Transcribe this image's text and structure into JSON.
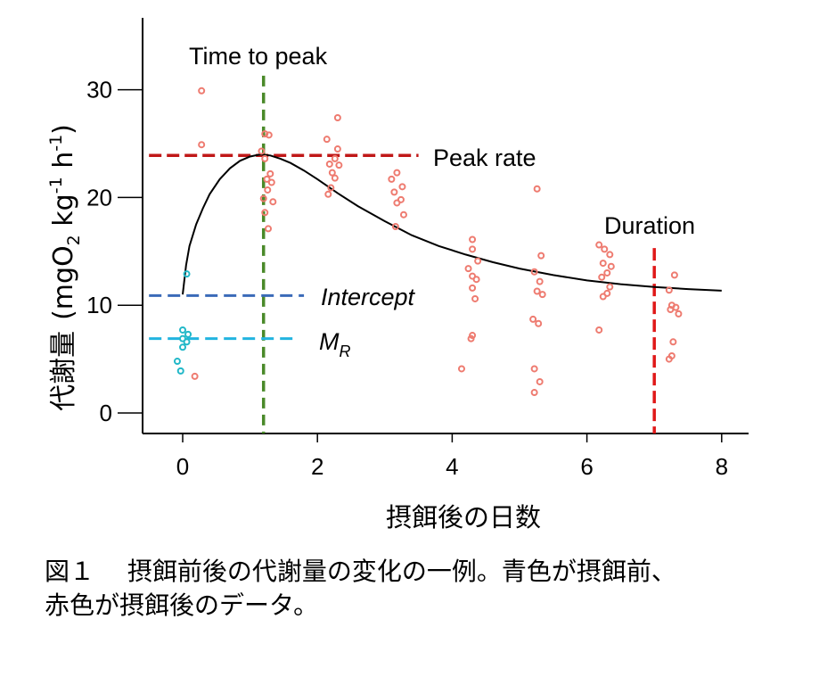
{
  "chart_data": {
    "type": "scatter",
    "xlabel": "摂餌後の日数",
    "ylabel": {
      "main": "代謝量",
      "unit_open": "(mgO",
      "unit_sub": "2",
      "unit_mid": " kg",
      "unit_sup1": "-1",
      "unit_mid2": " h",
      "unit_sup2": "-1",
      "unit_close": ")"
    },
    "xlim": [
      -0.6,
      8.4
    ],
    "ylim": [
      -1.8,
      36.5
    ],
    "x_ticks": [
      0,
      2,
      4,
      6,
      8
    ],
    "y_ticks": [
      0,
      10,
      20,
      30
    ],
    "grid": false,
    "colors": {
      "before": "#22b8c8",
      "after": "#ee7b70",
      "curve": "#000000",
      "peak_rate_line": "#c01818",
      "time_to_peak_line": "#4a8a2a",
      "intercept_line": "#3a6ab8",
      "mr_line": "#22b4e0",
      "duration_line": "#e01818"
    },
    "series": [
      {
        "name": "青色 摂餌前",
        "points": [
          [
            0.06,
            12.9
          ],
          [
            0.0,
            7.7
          ],
          [
            0.08,
            7.3
          ],
          [
            0.0,
            6.9
          ],
          [
            0.06,
            6.6
          ],
          [
            0.0,
            6.1
          ],
          [
            -0.08,
            4.8
          ],
          [
            -0.03,
            3.9
          ]
        ]
      },
      {
        "name": "赤色 摂餌後",
        "points": [
          [
            0.28,
            29.9
          ],
          [
            0.28,
            24.9
          ],
          [
            0.18,
            3.4
          ],
          [
            1.22,
            25.9
          ],
          [
            1.28,
            25.8
          ],
          [
            1.17,
            24.3
          ],
          [
            1.22,
            23.6
          ],
          [
            1.3,
            22.2
          ],
          [
            1.25,
            21.7
          ],
          [
            1.32,
            21.4
          ],
          [
            1.26,
            20.7
          ],
          [
            1.2,
            19.9
          ],
          [
            1.34,
            19.6
          ],
          [
            1.22,
            18.6
          ],
          [
            1.27,
            17.1
          ],
          [
            2.14,
            25.4
          ],
          [
            2.3,
            27.4
          ],
          [
            2.3,
            24.5
          ],
          [
            2.26,
            23.6
          ],
          [
            2.18,
            23.1
          ],
          [
            2.32,
            23.0
          ],
          [
            2.22,
            22.3
          ],
          [
            2.26,
            21.8
          ],
          [
            2.2,
            20.9
          ],
          [
            2.16,
            20.3
          ],
          [
            3.18,
            22.3
          ],
          [
            3.1,
            21.7
          ],
          [
            3.26,
            21.0
          ],
          [
            3.14,
            20.5
          ],
          [
            3.24,
            19.8
          ],
          [
            3.18,
            19.5
          ],
          [
            3.28,
            18.4
          ],
          [
            3.16,
            17.3
          ],
          [
            4.3,
            16.1
          ],
          [
            4.3,
            15.2
          ],
          [
            4.38,
            14.1
          ],
          [
            4.24,
            13.4
          ],
          [
            4.3,
            12.7
          ],
          [
            4.36,
            12.4
          ],
          [
            4.3,
            11.6
          ],
          [
            4.34,
            10.6
          ],
          [
            4.3,
            7.2
          ],
          [
            4.28,
            6.9
          ],
          [
            4.14,
            4.1
          ],
          [
            5.26,
            20.8
          ],
          [
            5.32,
            14.6
          ],
          [
            5.22,
            13.1
          ],
          [
            5.3,
            12.2
          ],
          [
            5.26,
            11.3
          ],
          [
            5.34,
            11.0
          ],
          [
            5.2,
            8.7
          ],
          [
            5.28,
            8.3
          ],
          [
            5.22,
            4.1
          ],
          [
            5.3,
            2.9
          ],
          [
            5.22,
            1.9
          ],
          [
            6.18,
            15.6
          ],
          [
            6.26,
            15.2
          ],
          [
            6.34,
            14.7
          ],
          [
            6.24,
            13.9
          ],
          [
            6.36,
            13.6
          ],
          [
            6.3,
            13.0
          ],
          [
            6.22,
            12.6
          ],
          [
            6.34,
            11.7
          ],
          [
            6.3,
            11.1
          ],
          [
            6.24,
            10.8
          ],
          [
            6.18,
            7.7
          ],
          [
            7.3,
            12.8
          ],
          [
            7.22,
            11.4
          ],
          [
            7.26,
            10.0
          ],
          [
            7.32,
            9.8
          ],
          [
            7.24,
            9.6
          ],
          [
            7.36,
            9.2
          ],
          [
            7.28,
            6.6
          ],
          [
            7.26,
            5.3
          ],
          [
            7.22,
            5.0
          ]
        ]
      }
    ],
    "curve": [
      [
        0.0,
        11.0
      ],
      [
        0.05,
        13.7
      ],
      [
        0.1,
        15.5
      ],
      [
        0.2,
        17.5
      ],
      [
        0.3,
        19.0
      ],
      [
        0.4,
        20.3
      ],
      [
        0.55,
        21.7
      ],
      [
        0.7,
        22.7
      ],
      [
        0.85,
        23.4
      ],
      [
        1.0,
        23.8
      ],
      [
        1.15,
        24.0
      ],
      [
        1.3,
        23.9
      ],
      [
        1.45,
        23.6
      ],
      [
        1.6,
        23.2
      ],
      [
        1.8,
        22.5
      ],
      [
        2.0,
        21.7
      ],
      [
        2.3,
        20.4
      ],
      [
        2.6,
        19.2
      ],
      [
        3.0,
        17.8
      ],
      [
        3.4,
        16.5
      ],
      [
        3.8,
        15.5
      ],
      [
        4.2,
        14.7
      ],
      [
        4.6,
        14.0
      ],
      [
        5.0,
        13.4
      ],
      [
        5.5,
        12.8
      ],
      [
        6.0,
        12.3
      ],
      [
        6.5,
        11.95
      ],
      [
        7.0,
        11.7
      ],
      [
        7.5,
        11.5
      ],
      [
        8.0,
        11.35
      ]
    ],
    "annotations": {
      "time_to_peak": {
        "label": "Time to peak",
        "x": 1.2
      },
      "peak_rate": {
        "label": "Peak rate",
        "y": 23.9,
        "x_range": [
          -0.5,
          3.5
        ]
      },
      "intercept": {
        "label": "Intercept",
        "y": 10.9,
        "x_range": [
          -0.5,
          1.8
        ]
      },
      "mr": {
        "label_main": "M",
        "label_sub": "R",
        "y": 6.9,
        "x_range": [
          -0.5,
          1.7
        ]
      },
      "duration": {
        "label": "Duration",
        "x": 7.0,
        "y_range": [
          -1.8,
          15.3
        ]
      }
    }
  },
  "caption": {
    "line1": "図１　 摂餌前後の代謝量の変化の一例。青色が摂餌前、",
    "line2": "赤色が摂餌後のデータ。"
  }
}
